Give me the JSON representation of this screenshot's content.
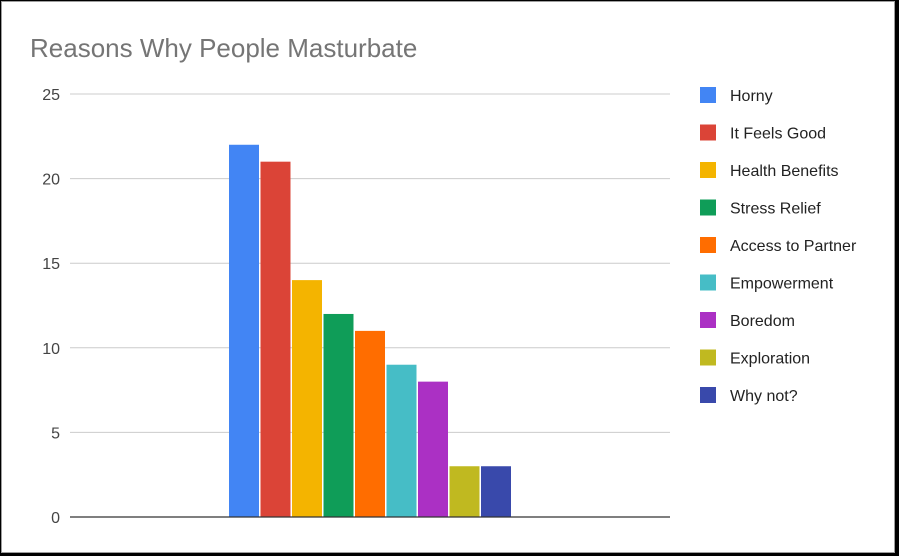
{
  "chart_data": {
    "type": "bar",
    "title": "Reasons Why People Masturbate",
    "xlabel": "",
    "ylabel": "",
    "ylim": [
      0,
      25
    ],
    "yticks": [
      0,
      5,
      10,
      15,
      20,
      25
    ],
    "grid": true,
    "legend_position": "right",
    "series": [
      {
        "name": "Horny",
        "value": 22,
        "color": "#4285f4"
      },
      {
        "name": "It Feels Good",
        "value": 21,
        "color": "#db4437"
      },
      {
        "name": "Health Benefits",
        "value": 14,
        "color": "#f4b400"
      },
      {
        "name": "Stress Relief",
        "value": 12,
        "color": "#0f9d58"
      },
      {
        "name": "Access to Partner",
        "value": 11,
        "color": "#ff6d00"
      },
      {
        "name": "Empowerment",
        "value": 9,
        "color": "#46bdc6"
      },
      {
        "name": "Boredom",
        "value": 8,
        "color": "#ab30c4"
      },
      {
        "name": "Exploration",
        "value": 3,
        "color": "#c0b920"
      },
      {
        "name": "Why not?",
        "value": 3,
        "color": "#3949ab"
      }
    ]
  }
}
